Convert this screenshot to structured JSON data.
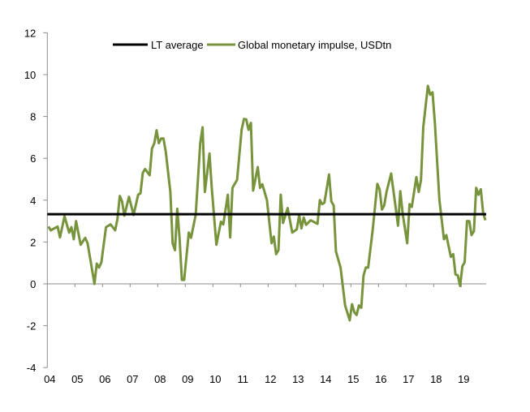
{
  "chart_data": {
    "type": "line",
    "title": "",
    "xlabel": "",
    "ylabel": "",
    "ylim": [
      -4,
      12
    ],
    "yticks": [
      "-4",
      "-2",
      "0",
      "2",
      "4",
      "6",
      "8",
      "10",
      "12"
    ],
    "xticks": [
      "04",
      "05",
      "06",
      "07",
      "08",
      "09",
      "10",
      "11",
      "12",
      "13",
      "14",
      "15",
      "16",
      "17",
      "18",
      "19"
    ],
    "xlim": [
      "2004-01",
      "2019-11"
    ],
    "grid": false,
    "legend_position": "top",
    "series": [
      {
        "name": "LT average",
        "color": "#000000",
        "constant": 3.33
      },
      {
        "name": "Global monetary impulse, USDtn",
        "color": "#77933c",
        "points": [
          [
            "2004-01",
            2.74
          ],
          [
            "2004-02",
            2.56
          ],
          [
            "2004-05",
            2.74
          ],
          [
            "2004-06",
            2.22
          ],
          [
            "2004-08",
            3.23
          ],
          [
            "2004-10",
            2.45
          ],
          [
            "2004-11",
            2.71
          ],
          [
            "2004-12",
            2.13
          ],
          [
            "2005-01",
            3.0
          ],
          [
            "2005-03",
            1.87
          ],
          [
            "2005-05",
            2.2
          ],
          [
            "2005-06",
            1.94
          ],
          [
            "2005-09",
            0.0
          ],
          [
            "2005-10",
            0.97
          ],
          [
            "2005-11",
            0.78
          ],
          [
            "2005-12",
            1.03
          ],
          [
            "2006-02",
            2.71
          ],
          [
            "2006-04",
            2.84
          ],
          [
            "2006-06",
            2.56
          ],
          [
            "2006-07",
            3.1
          ],
          [
            "2006-08",
            4.2
          ],
          [
            "2006-09",
            3.94
          ],
          [
            "2006-10",
            3.26
          ],
          [
            "2006-12",
            4.16
          ],
          [
            "2007-02",
            3.29
          ],
          [
            "2007-04",
            4.26
          ],
          [
            "2007-05",
            4.33
          ],
          [
            "2007-06",
            5.3
          ],
          [
            "2007-07",
            5.49
          ],
          [
            "2007-09",
            5.19
          ],
          [
            "2007-10",
            6.46
          ],
          [
            "2007-11",
            6.72
          ],
          [
            "2007-12",
            7.34
          ],
          [
            "2008-01",
            6.72
          ],
          [
            "2008-02",
            6.95
          ],
          [
            "2008-03",
            6.95
          ],
          [
            "2008-04",
            6.33
          ],
          [
            "2008-06",
            4.39
          ],
          [
            "2008-07",
            1.94
          ],
          [
            "2008-08",
            1.61
          ],
          [
            "2008-09",
            3.59
          ],
          [
            "2008-10",
            2.2
          ],
          [
            "2008-11",
            0.19
          ],
          [
            "2008-12",
            0.19
          ],
          [
            "2009-02",
            2.45
          ],
          [
            "2009-03",
            2.2
          ],
          [
            "2009-05",
            3.29
          ],
          [
            "2009-07",
            6.72
          ],
          [
            "2009-08",
            7.49
          ],
          [
            "2009-09",
            4.39
          ],
          [
            "2009-11",
            6.23
          ],
          [
            "2009-12",
            4.59
          ],
          [
            "2010-02",
            1.87
          ],
          [
            "2010-04",
            2.97
          ],
          [
            "2010-05",
            2.84
          ],
          [
            "2010-07",
            4.26
          ],
          [
            "2010-08",
            2.22
          ],
          [
            "2010-09",
            4.59
          ],
          [
            "2010-11",
            4.97
          ],
          [
            "2011-01",
            7.36
          ],
          [
            "2011-02",
            7.88
          ],
          [
            "2011-03",
            7.86
          ],
          [
            "2011-04",
            7.36
          ],
          [
            "2011-05",
            7.69
          ],
          [
            "2011-06",
            4.46
          ],
          [
            "2011-08",
            5.58
          ],
          [
            "2011-09",
            4.59
          ],
          [
            "2011-10",
            4.76
          ],
          [
            "2011-12",
            4.0
          ],
          [
            "2012-02",
            1.94
          ],
          [
            "2012-03",
            2.26
          ],
          [
            "2012-04",
            1.42
          ],
          [
            "2012-05",
            1.61
          ],
          [
            "2012-06",
            4.26
          ],
          [
            "2012-07",
            2.91
          ],
          [
            "2012-09",
            3.62
          ],
          [
            "2012-11",
            2.45
          ],
          [
            "2013-01",
            2.61
          ],
          [
            "2013-02",
            3.29
          ],
          [
            "2013-03",
            2.65
          ],
          [
            "2013-04",
            3.17
          ],
          [
            "2013-05",
            2.82
          ],
          [
            "2013-07",
            3.04
          ],
          [
            "2013-10",
            2.87
          ],
          [
            "2013-11",
            4.0
          ],
          [
            "2013-12",
            3.81
          ],
          [
            "2014-01",
            3.88
          ],
          [
            "2014-03",
            5.23
          ],
          [
            "2014-04",
            3.94
          ],
          [
            "2014-05",
            3.75
          ],
          [
            "2014-06",
            1.55
          ],
          [
            "2014-08",
            0.78
          ],
          [
            "2014-10",
            -1.03
          ],
          [
            "2014-12",
            -1.74
          ],
          [
            "2015-01",
            -0.97
          ],
          [
            "2015-02",
            -1.36
          ],
          [
            "2015-03",
            -1.49
          ],
          [
            "2015-04",
            -1.03
          ],
          [
            "2015-05",
            -1.14
          ],
          [
            "2015-06",
            0.39
          ],
          [
            "2015-07",
            0.78
          ],
          [
            "2015-08",
            0.78
          ],
          [
            "2015-10",
            2.58
          ],
          [
            "2015-12",
            4.78
          ],
          [
            "2016-01",
            4.52
          ],
          [
            "2016-02",
            3.55
          ],
          [
            "2016-03",
            3.75
          ],
          [
            "2016-04",
            4.39
          ],
          [
            "2016-06",
            5.27
          ],
          [
            "2016-08",
            3.62
          ],
          [
            "2016-09",
            2.78
          ],
          [
            "2016-10",
            4.43
          ],
          [
            "2016-11",
            3.36
          ],
          [
            "2017-01",
            1.94
          ],
          [
            "2017-02",
            3.81
          ],
          [
            "2017-03",
            3.68
          ],
          [
            "2017-05",
            5.1
          ],
          [
            "2017-06",
            4.39
          ],
          [
            "2017-07",
            4.97
          ],
          [
            "2017-08",
            7.49
          ],
          [
            "2017-10",
            9.46
          ],
          [
            "2017-11",
            9.04
          ],
          [
            "2017-12",
            9.15
          ],
          [
            "2018-01",
            7.75
          ],
          [
            "2018-03",
            4.0
          ],
          [
            "2018-05",
            2.13
          ],
          [
            "2018-06",
            2.33
          ],
          [
            "2018-08",
            1.29
          ],
          [
            "2018-09",
            1.42
          ],
          [
            "2018-10",
            0.45
          ],
          [
            "2018-11",
            0.41
          ],
          [
            "2018-12",
            -0.1
          ],
          [
            "2019-01",
            0.84
          ],
          [
            "2019-02",
            1.03
          ],
          [
            "2019-03",
            3.0
          ],
          [
            "2019-04",
            3.0
          ],
          [
            "2019-05",
            2.33
          ],
          [
            "2019-06",
            2.52
          ],
          [
            "2019-07",
            4.59
          ],
          [
            "2019-08",
            4.26
          ],
          [
            "2019-09",
            4.52
          ],
          [
            "2019-10",
            3.42
          ],
          [
            "2019-11",
            3.04
          ]
        ]
      }
    ]
  }
}
